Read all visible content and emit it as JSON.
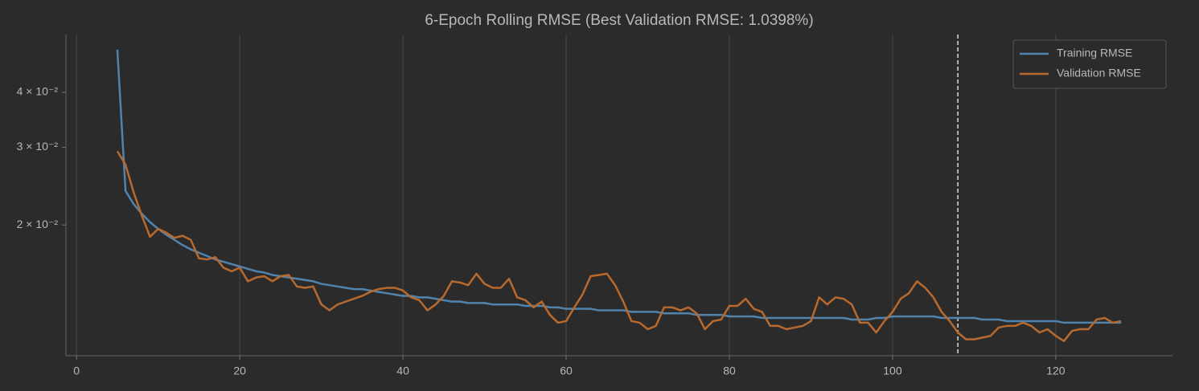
{
  "chart_data": {
    "type": "line",
    "title": "6-Epoch Rolling RMSE (Best Validation RMSE: 1.0398%)",
    "x": [
      5,
      6,
      7,
      8,
      9,
      10,
      11,
      12,
      13,
      14,
      15,
      16,
      17,
      18,
      19,
      20,
      21,
      22,
      23,
      24,
      25,
      26,
      27,
      28,
      29,
      30,
      31,
      32,
      33,
      34,
      35,
      36,
      37,
      38,
      39,
      40,
      41,
      42,
      43,
      44,
      45,
      46,
      47,
      48,
      49,
      50,
      51,
      52,
      53,
      54,
      55,
      56,
      57,
      58,
      59,
      60,
      61,
      62,
      63,
      64,
      65,
      66,
      67,
      68,
      69,
      70,
      71,
      72,
      73,
      74,
      75,
      76,
      77,
      78,
      79,
      80,
      81,
      82,
      83,
      84,
      85,
      86,
      87,
      88,
      89,
      90,
      91,
      92,
      93,
      94,
      95,
      96,
      97,
      98,
      99,
      100,
      101,
      102,
      103,
      104,
      105,
      106,
      107,
      108,
      109,
      110,
      111,
      112,
      113,
      114,
      115,
      116,
      117,
      118,
      119,
      120,
      121,
      122,
      123,
      124,
      125,
      126,
      127,
      128
    ],
    "series": [
      {
        "name": "Training RMSE",
        "color": "#5283ad",
        "values": [
          0.05,
          0.0239,
          0.0223,
          0.0212,
          0.0203,
          0.0196,
          0.019,
          0.0185,
          0.018,
          0.0176,
          0.0173,
          0.017,
          0.0167,
          0.0165,
          0.0163,
          0.0161,
          0.0159,
          0.0157,
          0.0156,
          0.0154,
          0.0153,
          0.0152,
          0.0151,
          0.015,
          0.0149,
          0.0147,
          0.0146,
          0.0145,
          0.0144,
          0.0143,
          0.0143,
          0.0142,
          0.0141,
          0.014,
          0.0139,
          0.0138,
          0.0138,
          0.0137,
          0.0137,
          0.0136,
          0.0135,
          0.0134,
          0.0134,
          0.0133,
          0.0133,
          0.0133,
          0.0132,
          0.0132,
          0.0132,
          0.0132,
          0.0131,
          0.0131,
          0.0131,
          0.013,
          0.013,
          0.0129,
          0.0129,
          0.0129,
          0.0129,
          0.0128,
          0.0128,
          0.0128,
          0.0128,
          0.0127,
          0.0127,
          0.0127,
          0.0127,
          0.0126,
          0.0126,
          0.0126,
          0.0126,
          0.0125,
          0.0125,
          0.0125,
          0.0125,
          0.0124,
          0.0124,
          0.0124,
          0.0124,
          0.0123,
          0.0123,
          0.0123,
          0.0123,
          0.0123,
          0.0123,
          0.0123,
          0.0123,
          0.0123,
          0.0123,
          0.0123,
          0.0122,
          0.0122,
          0.0122,
          0.0123,
          0.0123,
          0.0124,
          0.0124,
          0.0124,
          0.0124,
          0.0124,
          0.0124,
          0.0123,
          0.0123,
          0.0123,
          0.0123,
          0.0123,
          0.0122,
          0.0122,
          0.0122,
          0.0121,
          0.0121,
          0.0121,
          0.0121,
          0.0121,
          0.0121,
          0.0121,
          0.012,
          0.012,
          0.012,
          0.012,
          0.012,
          0.012,
          0.012,
          0.012
        ]
      },
      {
        "name": "Validation RMSE",
        "color": "#b86a2e",
        "values": [
          0.0294,
          0.0274,
          0.0237,
          0.021,
          0.0188,
          0.0196,
          0.0192,
          0.0187,
          0.0189,
          0.0185,
          0.0168,
          0.0167,
          0.0169,
          0.016,
          0.0157,
          0.016,
          0.0149,
          0.0152,
          0.0153,
          0.0149,
          0.0153,
          0.0154,
          0.0145,
          0.0144,
          0.0145,
          0.0132,
          0.0128,
          0.0132,
          0.0134,
          0.0136,
          0.0138,
          0.0141,
          0.0143,
          0.0144,
          0.0144,
          0.0142,
          0.0137,
          0.0135,
          0.0128,
          0.0132,
          0.0138,
          0.0149,
          0.0148,
          0.0146,
          0.0155,
          0.0147,
          0.0144,
          0.0144,
          0.0151,
          0.0137,
          0.0135,
          0.013,
          0.0134,
          0.0125,
          0.012,
          0.0121,
          0.013,
          0.0139,
          0.0153,
          0.0154,
          0.0155,
          0.0146,
          0.0134,
          0.0121,
          0.012,
          0.0116,
          0.0118,
          0.013,
          0.013,
          0.0128,
          0.013,
          0.0126,
          0.0116,
          0.0121,
          0.0122,
          0.0131,
          0.0131,
          0.0136,
          0.0129,
          0.0127,
          0.0118,
          0.0118,
          0.0116,
          0.0117,
          0.0118,
          0.0121,
          0.0137,
          0.0132,
          0.0137,
          0.0136,
          0.0132,
          0.012,
          0.012,
          0.0114,
          0.0121,
          0.0127,
          0.0136,
          0.014,
          0.0149,
          0.0144,
          0.0137,
          0.0127,
          0.0121,
          0.0114,
          0.011,
          0.011,
          0.0111,
          0.0112,
          0.0117,
          0.0118,
          0.0118,
          0.012,
          0.0118,
          0.0114,
          0.0116,
          0.0112,
          0.0109,
          0.0115,
          0.0116,
          0.0116,
          0.0122,
          0.0123,
          0.012,
          0.0121
        ]
      }
    ],
    "xlim": [
      -1.3,
      134.3
    ],
    "xticks": [
      0,
      20,
      40,
      60,
      80,
      100,
      120
    ],
    "ylim": [
      0.0101,
      0.0541
    ],
    "yticks": [
      {
        "value": 0.02,
        "label": "2 × 10⁻²"
      },
      {
        "value": 0.03,
        "label": "3 × 10⁻²"
      },
      {
        "value": 0.04,
        "label": "4 × 10⁻²"
      }
    ],
    "log_y": true,
    "grid": "x",
    "legend": "upper right",
    "best_epoch_line": 108
  }
}
